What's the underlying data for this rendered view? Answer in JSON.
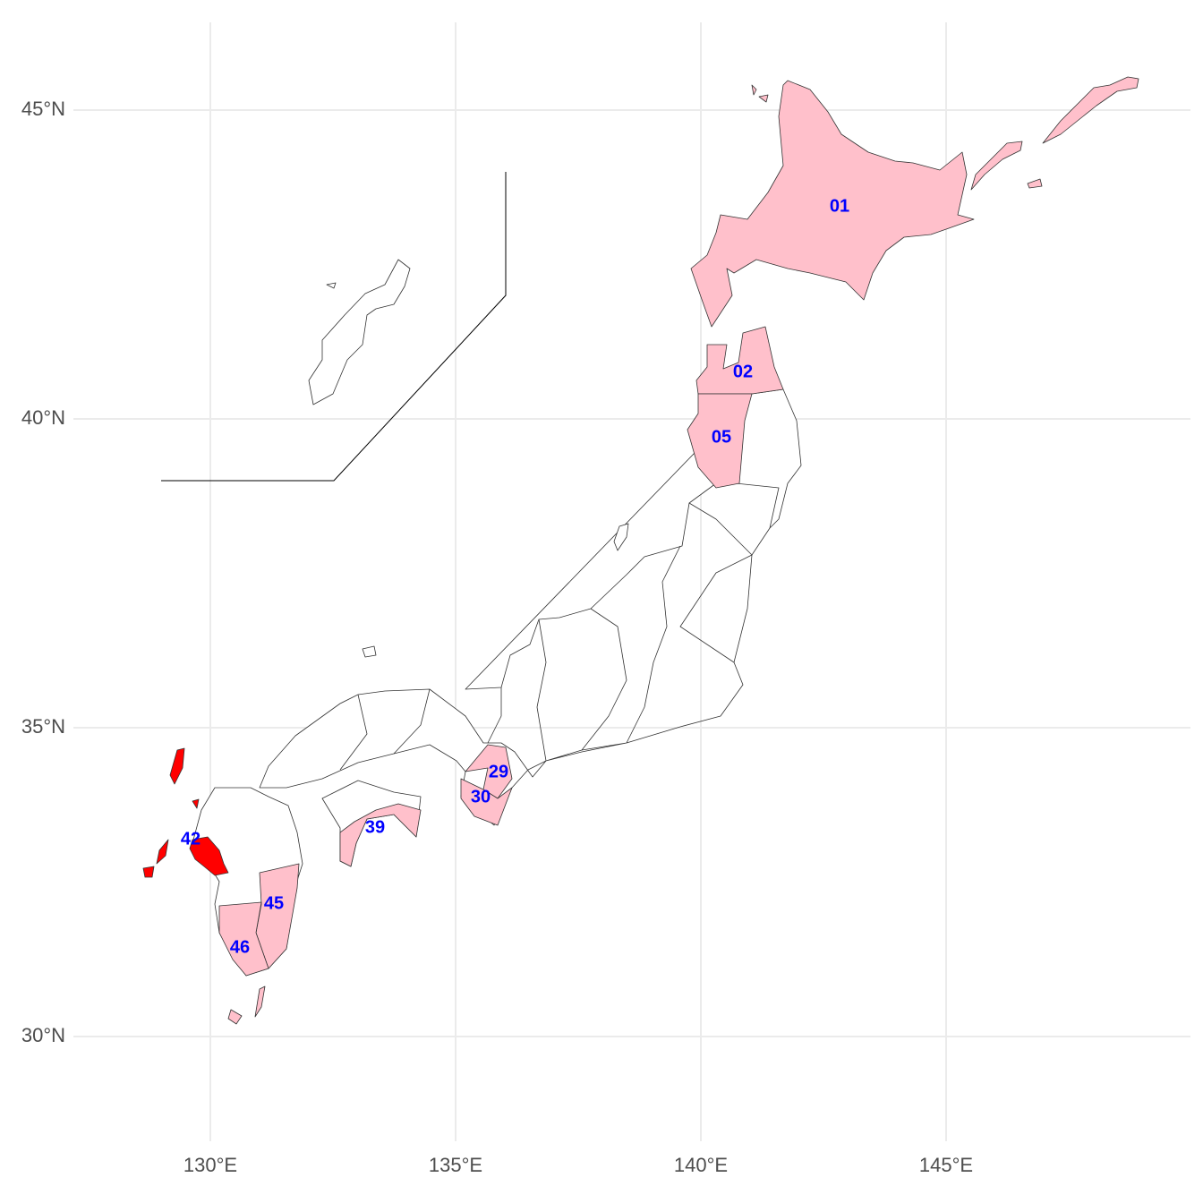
{
  "map": {
    "x_axis": {
      "ticks": [
        {
          "value": 130,
          "label": "130°E"
        },
        {
          "value": 135,
          "label": "135°E"
        },
        {
          "value": 140,
          "label": "140°E"
        },
        {
          "value": 145,
          "label": "145°E"
        }
      ]
    },
    "y_axis": {
      "ticks": [
        {
          "value": 45,
          "label": "45°N"
        },
        {
          "value": 40,
          "label": "40°N"
        },
        {
          "value": 35,
          "label": "35°N"
        },
        {
          "value": 30,
          "label": "30°N"
        }
      ]
    },
    "region_labels": [
      "01",
      "02",
      "05",
      "29",
      "30",
      "39",
      "42",
      "45",
      "46"
    ]
  }
}
